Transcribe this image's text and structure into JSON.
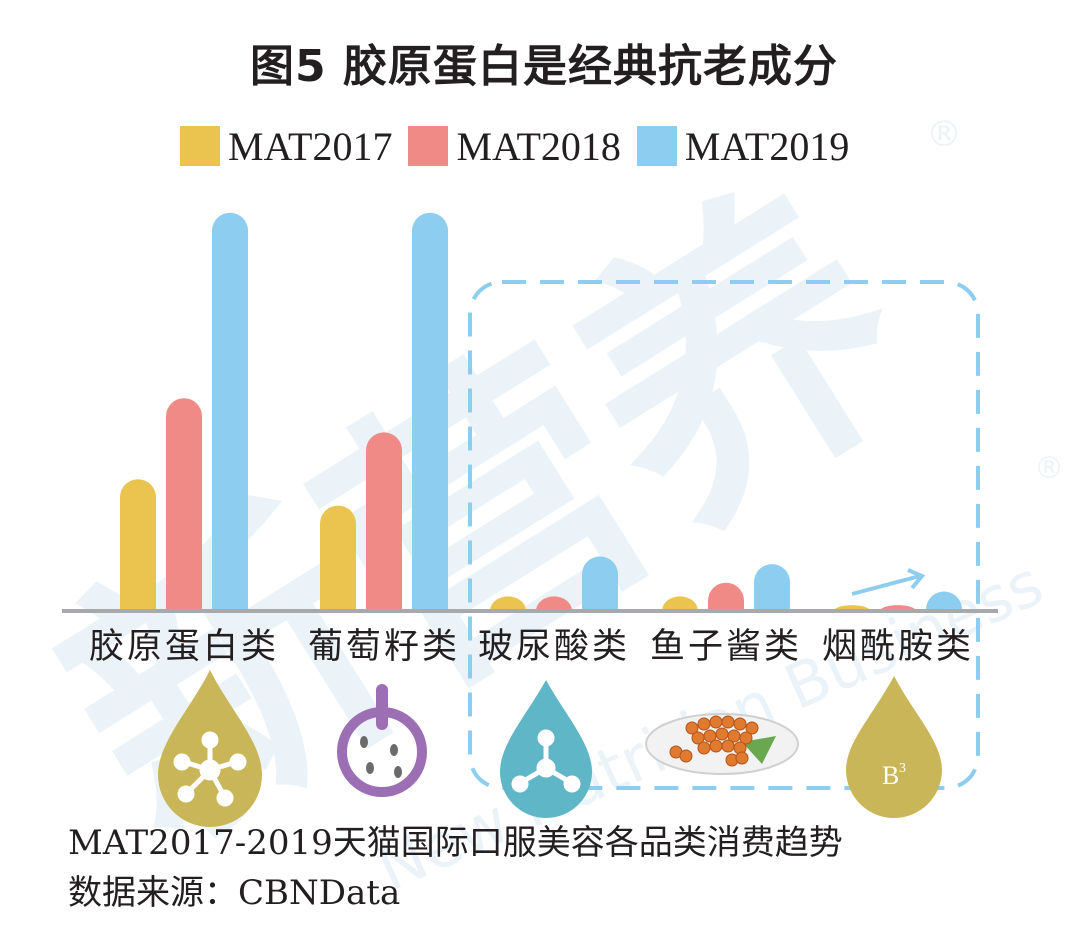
{
  "chart_data": {
    "type": "bar",
    "title": "图5  胶原蛋白是经典抗老成分",
    "categories": [
      "胶原蛋白类",
      "葡萄籽类",
      "玻尿酸类",
      "鱼子酱类",
      "烟酰胺类"
    ],
    "series": [
      {
        "name": "MAT2017",
        "color": "#ebc44f",
        "values": [
          135,
          108,
          15,
          15,
          6
        ]
      },
      {
        "name": "MAT2018",
        "color": "#ef8a86",
        "values": [
          218,
          183,
          15,
          29,
          6
        ]
      },
      {
        "name": "MAT2019",
        "color": "#8dcdf0",
        "values": [
          408,
          408,
          56,
          48,
          20
        ]
      }
    ],
    "ylim": [
      0,
      420
    ],
    "legend_position": "top",
    "grid": false,
    "highlight_box": [
      "玻尿酸类",
      "鱼子酱类",
      "烟酰胺类"
    ]
  },
  "watermark": {
    "text": "新营养",
    "subtext": "New Nutrition Business",
    "mark": "®"
  },
  "icons": [
    "molecule-drop-icon",
    "grape-seed-icon",
    "molecule-drop-icon",
    "caviar-plate-icon",
    "b3-drop-icon"
  ],
  "icon_b3_label": "B",
  "icon_b3_sup": "3",
  "footnote": {
    "line1": "MAT2017-2019天猫国际口服美容各品类消费趋势",
    "line2": "数据来源：CBNData"
  }
}
